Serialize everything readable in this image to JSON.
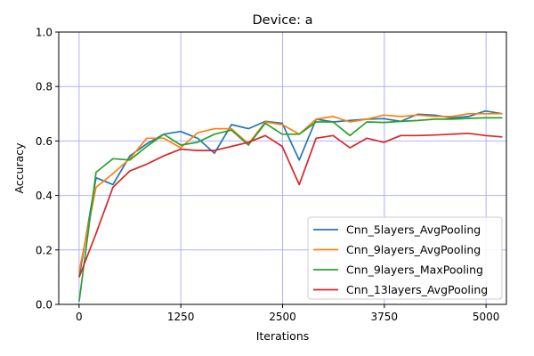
{
  "chart_data": {
    "type": "line",
    "title": "Device: a",
    "xlabel": "Iterations",
    "ylabel": "Accuracy",
    "xlim": [
      -250,
      5250
    ],
    "ylim": [
      0,
      1.0
    ],
    "xticks": [
      0,
      1250,
      2500,
      3750,
      5000
    ],
    "yticks": [
      0.0,
      0.2,
      0.4,
      0.6,
      0.8,
      1.0
    ],
    "xtick_labels": [
      "0",
      "1250",
      "2500",
      "3750",
      "5000"
    ],
    "ytick_labels": [
      "0.0",
      "0.2",
      "0.4",
      "0.6",
      "0.8",
      "1.0"
    ],
    "grid": true,
    "grid_color": "#b0b0ff",
    "legend_position": "lower-right",
    "x": [
      0,
      208,
      416,
      624,
      832,
      1040,
      1248,
      1456,
      1664,
      1872,
      2080,
      2288,
      2496,
      2704,
      2912,
      3120,
      3328,
      3536,
      3744,
      3952,
      4160,
      4368,
      4576,
      4784,
      4992,
      5200
    ],
    "series": [
      {
        "name": "Cnn_5layers_AvgPooling",
        "color": "#1f77b4",
        "values": [
          0.1,
          0.465,
          0.44,
          0.545,
          0.59,
          0.625,
          0.635,
          0.61,
          0.555,
          0.66,
          0.645,
          0.672,
          0.665,
          0.53,
          0.68,
          0.67,
          0.675,
          0.68,
          0.682,
          0.672,
          0.698,
          0.695,
          0.685,
          0.69,
          0.71,
          0.7
        ]
      },
      {
        "name": "Cnn_9layers_AvgPooling",
        "color": "#ff7f0e",
        "values": [
          0.12,
          0.43,
          0.48,
          0.535,
          0.61,
          0.61,
          0.575,
          0.63,
          0.645,
          0.645,
          0.59,
          0.67,
          0.66,
          0.625,
          0.68,
          0.69,
          0.67,
          0.68,
          0.695,
          0.69,
          0.695,
          0.69,
          0.69,
          0.7,
          0.7,
          0.7
        ]
      },
      {
        "name": "Cnn_9layers_MaxPooling",
        "color": "#2ca02c",
        "values": [
          0.01,
          0.485,
          0.535,
          0.53,
          0.58,
          0.625,
          0.585,
          0.595,
          0.625,
          0.64,
          0.585,
          0.665,
          0.625,
          0.625,
          0.67,
          0.67,
          0.62,
          0.67,
          0.668,
          0.672,
          0.675,
          0.68,
          0.68,
          0.683,
          0.685,
          0.685
        ]
      },
      {
        "name": "Cnn_13layers_AvgPooling",
        "color": "#d62728",
        "values": [
          0.1,
          0.26,
          0.43,
          0.49,
          0.515,
          0.545,
          0.57,
          0.565,
          0.565,
          0.58,
          0.595,
          0.62,
          0.58,
          0.44,
          0.61,
          0.62,
          0.575,
          0.61,
          0.595,
          0.62,
          0.62,
          0.622,
          0.625,
          0.628,
          0.62,
          0.615
        ]
      }
    ]
  }
}
